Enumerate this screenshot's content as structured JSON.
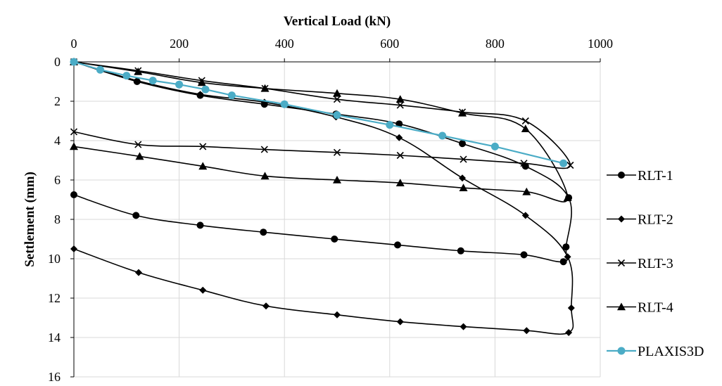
{
  "chart_data": {
    "type": "scatter",
    "title": "",
    "xlabel": "Vertical Load (kN)",
    "ylabel": "Settlement (mm)",
    "xlim": [
      0,
      1000
    ],
    "ylim": [
      0,
      16
    ],
    "x_ticks": [
      "0",
      "200",
      "400",
      "600",
      "800",
      "1000"
    ],
    "y_ticks": [
      "0",
      "2",
      "4",
      "6",
      "8",
      "10",
      "12",
      "14",
      "16"
    ],
    "x_axis_position": "top",
    "y_axis_inverted": true,
    "grid": true,
    "legend_position": "right",
    "series": [
      {
        "name": "RLT-1",
        "marker": "circle",
        "color": "#000000",
        "points": [
          [
            0,
            0
          ],
          [
            120,
            1.0
          ],
          [
            240,
            1.7
          ],
          [
            362,
            2.15
          ],
          [
            498,
            2.65
          ],
          [
            618,
            3.15
          ],
          [
            738,
            4.15
          ],
          [
            858,
            5.3
          ],
          [
            940,
            6.9
          ],
          [
            935,
            9.4
          ],
          [
            930,
            10.15
          ],
          [
            855,
            9.8
          ],
          [
            735,
            9.6
          ],
          [
            615,
            9.3
          ],
          [
            495,
            9.0
          ],
          [
            360,
            8.65
          ],
          [
            240,
            8.3
          ],
          [
            118,
            7.8
          ],
          [
            0,
            6.75
          ]
        ]
      },
      {
        "name": "RLT-2",
        "marker": "diamond",
        "color": "#000000",
        "points": [
          [
            0,
            0
          ],
          [
            120,
            0.95
          ],
          [
            240,
            1.65
          ],
          [
            362,
            2.05
          ],
          [
            498,
            2.8
          ],
          [
            618,
            3.85
          ],
          [
            738,
            5.9
          ],
          [
            858,
            7.8
          ],
          [
            938,
            9.9
          ],
          [
            945,
            12.5
          ],
          [
            940,
            13.75
          ],
          [
            860,
            13.65
          ],
          [
            740,
            13.45
          ],
          [
            620,
            13.2
          ],
          [
            500,
            12.85
          ],
          [
            365,
            12.4
          ],
          [
            245,
            11.6
          ],
          [
            123,
            10.7
          ],
          [
            0,
            9.5
          ]
        ]
      },
      {
        "name": "RLT-3",
        "marker": "x",
        "color": "#000000",
        "points": [
          [
            0,
            0
          ],
          [
            122,
            0.45
          ],
          [
            243,
            0.95
          ],
          [
            363,
            1.35
          ],
          [
            500,
            1.9
          ],
          [
            620,
            2.2
          ],
          [
            738,
            2.55
          ],
          [
            858,
            3.0
          ],
          [
            943,
            5.25
          ],
          [
            855,
            5.15
          ],
          [
            740,
            4.95
          ],
          [
            620,
            4.75
          ],
          [
            500,
            4.6
          ],
          [
            362,
            4.45
          ],
          [
            245,
            4.3
          ],
          [
            122,
            4.2
          ],
          [
            0,
            3.55
          ]
        ]
      },
      {
        "name": "RLT-4",
        "marker": "triangle",
        "color": "#000000",
        "points": [
          [
            0,
            0
          ],
          [
            122,
            0.5
          ],
          [
            243,
            1.05
          ],
          [
            363,
            1.35
          ],
          [
            500,
            1.6
          ],
          [
            620,
            1.9
          ],
          [
            738,
            2.6
          ],
          [
            858,
            3.4
          ],
          [
            938,
            6.9
          ],
          [
            860,
            6.6
          ],
          [
            740,
            6.4
          ],
          [
            620,
            6.15
          ],
          [
            500,
            6.0
          ],
          [
            363,
            5.8
          ],
          [
            245,
            5.3
          ],
          [
            125,
            4.8
          ],
          [
            0,
            4.3
          ]
        ]
      },
      {
        "name": "PLAXIS3D",
        "marker": "circle",
        "color": "#4bacc6",
        "points": [
          [
            0,
            0
          ],
          [
            50,
            0.4
          ],
          [
            100,
            0.7
          ],
          [
            150,
            0.95
          ],
          [
            200,
            1.15
          ],
          [
            250,
            1.4
          ],
          [
            300,
            1.7
          ],
          [
            400,
            2.15
          ],
          [
            500,
            2.7
          ],
          [
            600,
            3.2
          ],
          [
            700,
            3.75
          ],
          [
            800,
            4.3
          ],
          [
            930,
            5.15
          ]
        ]
      }
    ]
  }
}
